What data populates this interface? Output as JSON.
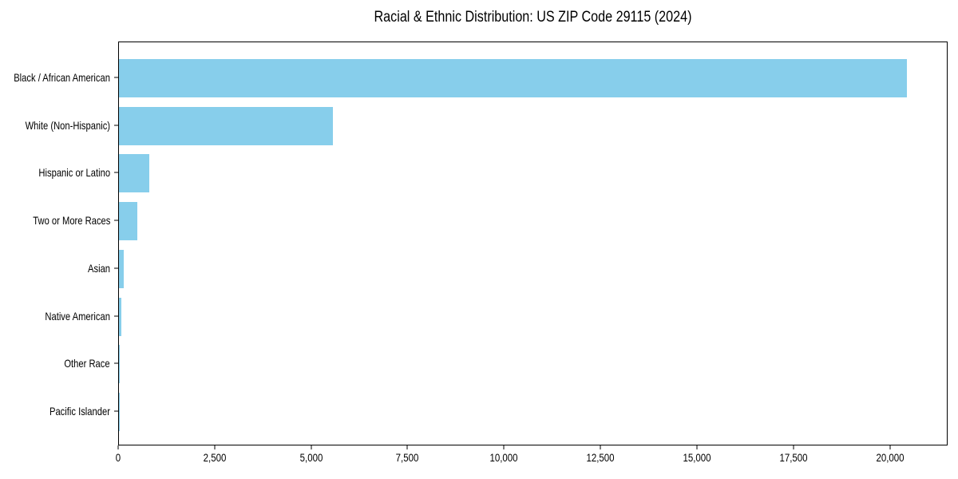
{
  "figure": {
    "background": "#ffffff"
  },
  "chart_data": {
    "type": "bar",
    "orientation": "horizontal",
    "title": "Racial & Ethnic Distribution: US ZIP Code 29115 (2024)",
    "categories": [
      "Black / African American",
      "White (Non-Hispanic)",
      "Hispanic or Latino",
      "Two or More Races",
      "Asian",
      "Native American",
      "Other Race",
      "Pacific Islander"
    ],
    "values": [
      20470,
      5548,
      796,
      470,
      118,
      56,
      15,
      4
    ],
    "title_text": "Racial & Ethnic Distribution: US ZIP Code 29115 (2024)",
    "xlabel": "",
    "ylabel": "",
    "xlim": [
      0,
      21500
    ],
    "xticks": [
      0,
      2500,
      5000,
      7500,
      10000,
      12500,
      15000,
      17500,
      20000
    ],
    "xtick_labels": [
      "0",
      "2,500",
      "5,000",
      "7,500",
      "10,000",
      "12,500",
      "15,000",
      "17,500",
      "20,000"
    ],
    "bar_color": "#87CEEB",
    "axis_color": "#000000",
    "text_color": "#000000",
    "grid": false,
    "legend": "none"
  }
}
